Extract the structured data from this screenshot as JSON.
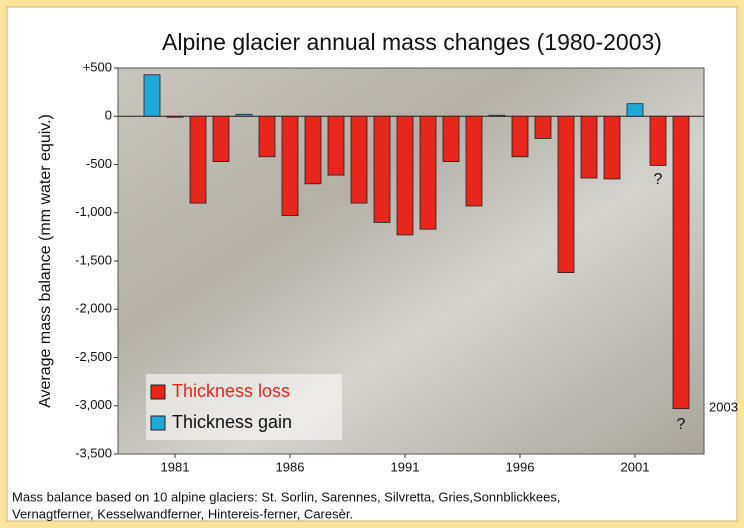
{
  "chart_data": {
    "type": "bar",
    "title": "Alpine glacier annual mass changes (1980-2003)",
    "y_label": "Average mass balance (mm water equiv.)",
    "categories": [
      null,
      "1981",
      null,
      null,
      null,
      null,
      "1986",
      null,
      null,
      null,
      null,
      "1991",
      null,
      null,
      null,
      null,
      "1996",
      null,
      null,
      null,
      null,
      "2001",
      null,
      null
    ],
    "series": [
      {
        "name": "Thickness loss",
        "color": "#e8261c",
        "values": [
          null,
          -10,
          -900,
          -470,
          null,
          -420,
          -1030,
          -700,
          -610,
          -900,
          -1100,
          -1230,
          -1170,
          -470,
          -930,
          null,
          -420,
          -230,
          -1620,
          -640,
          -650,
          null,
          -510,
          -3030
        ]
      },
      {
        "name": "Thickness gain",
        "color": "#1ea9d9",
        "values": [
          430,
          null,
          null,
          null,
          20,
          null,
          null,
          null,
          null,
          null,
          null,
          null,
          null,
          null,
          null,
          10,
          null,
          null,
          null,
          null,
          null,
          130,
          null,
          null
        ]
      }
    ],
    "ylim": [
      -3500,
      500
    ],
    "yticks": [
      {
        "value": 500,
        "label": "+500"
      },
      0,
      -500,
      {
        "value": -1000,
        "label": "-1,000"
      },
      {
        "value": -1500,
        "label": "-1,500"
      },
      {
        "value": -2000,
        "label": "-2,000"
      },
      {
        "value": -2500,
        "label": "-2,500"
      },
      {
        "value": -3000,
        "label": "-3,000"
      },
      {
        "value": -3500,
        "label": "-3,500"
      }
    ],
    "legend_position": "lower left",
    "annotations": [
      "?",
      "?",
      "2003"
    ],
    "note": [
      "Mass balance based on 10 alpine glaciers: St. Sorlin, Sarennes, Silvretta, Gries,Sonnblickkees,",
      "Vernagtferner, Kesselwandferner, Hintereis-ferner, Caresèr."
    ]
  }
}
